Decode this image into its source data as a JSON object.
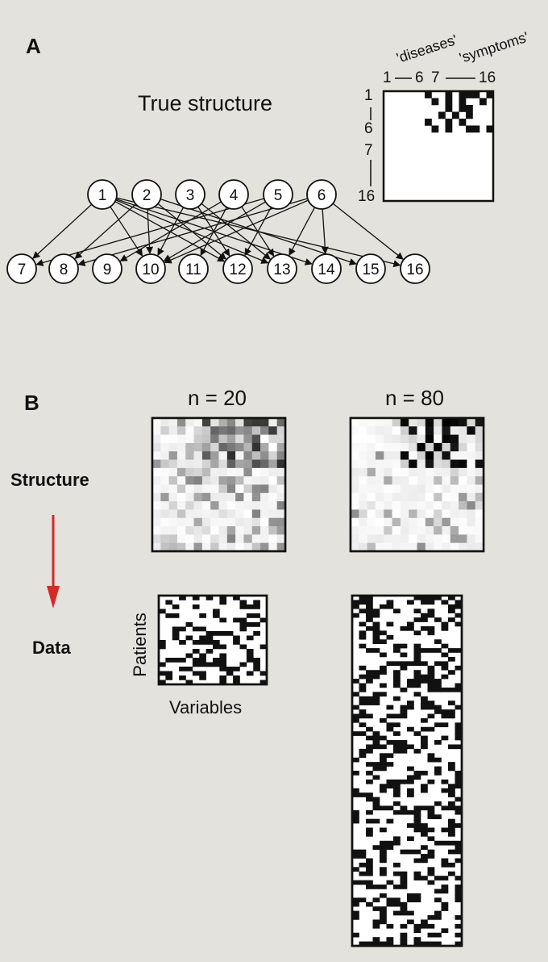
{
  "panel_a": {
    "letter": "A",
    "title": "True structure",
    "header_diseases": "'diseases'",
    "header_symptoms": "'symptoms'",
    "col_labels": [
      "1",
      "6",
      "7",
      "16"
    ],
    "row_labels": [
      "1",
      "6",
      "7",
      "16"
    ],
    "disease_nodes": [
      "1",
      "2",
      "3",
      "4",
      "5",
      "6"
    ],
    "symptom_nodes": [
      "7",
      "8",
      "9",
      "10",
      "11",
      "12",
      "13",
      "14",
      "15",
      "16"
    ],
    "edges": [
      [
        "1",
        "7"
      ],
      [
        "1",
        "10"
      ],
      [
        "1",
        "12"
      ],
      [
        "1",
        "13"
      ],
      [
        "1",
        "14"
      ],
      [
        "1",
        "16"
      ],
      [
        "2",
        "8"
      ],
      [
        "2",
        "10"
      ],
      [
        "2",
        "12"
      ],
      [
        "2",
        "15"
      ],
      [
        "3",
        "10"
      ],
      [
        "3",
        "12"
      ],
      [
        "3",
        "13"
      ],
      [
        "4",
        "9"
      ],
      [
        "4",
        "11"
      ],
      [
        "4",
        "13"
      ],
      [
        "5",
        "7"
      ],
      [
        "5",
        "10"
      ],
      [
        "5",
        "12"
      ],
      [
        "6",
        "8"
      ],
      [
        "6",
        "10"
      ],
      [
        "6",
        "13"
      ],
      [
        "6",
        "14"
      ],
      [
        "6",
        "16"
      ]
    ]
  },
  "panel_b": {
    "letter": "B",
    "n20_label": "n = 20",
    "n80_label": "n = 80",
    "structure_label": "Structure",
    "data_label": "Data",
    "patients_label": "Patients",
    "variables_label": "Variables",
    "arrow_color": "#d42a2a"
  }
}
